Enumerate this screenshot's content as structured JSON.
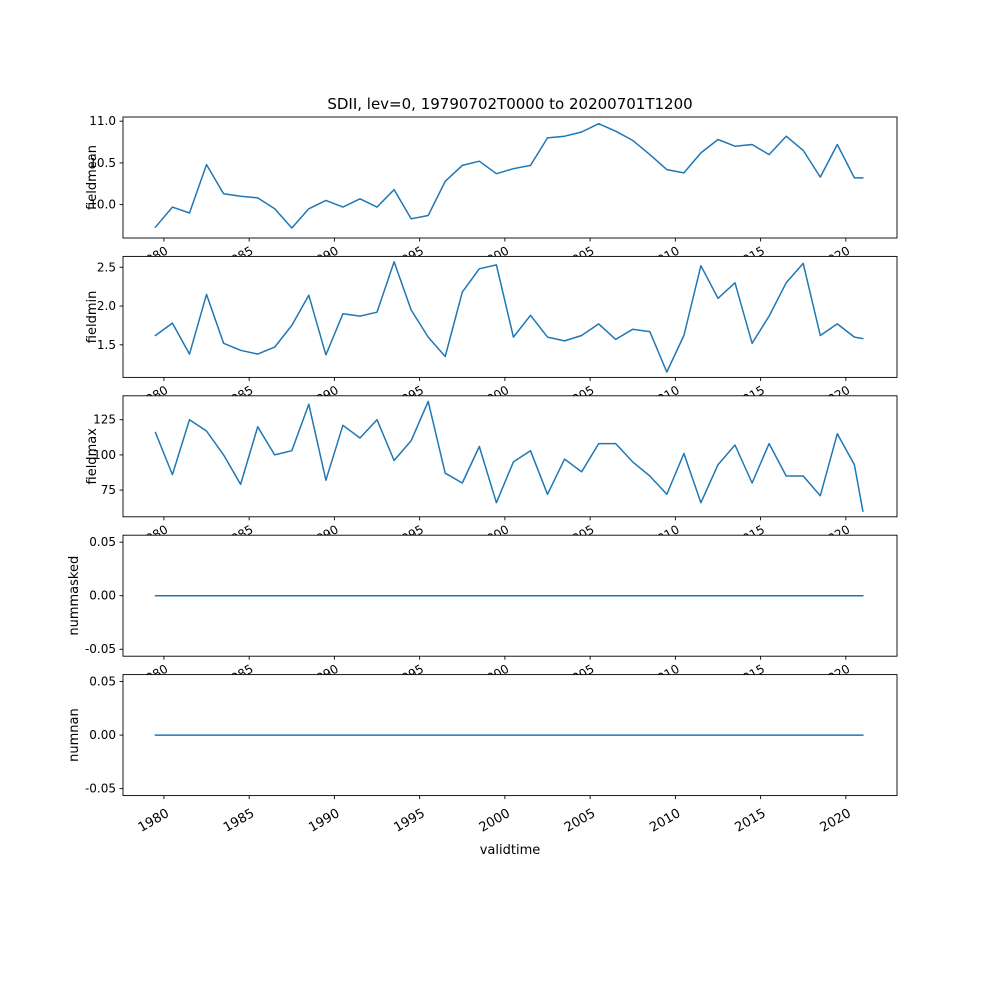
{
  "chart_data": {
    "type": "line",
    "title": "SDII, lev=0, 19790702T0000 to 20200701T1200",
    "xlabel": "validtime",
    "line_color": "#1f77b4",
    "axis_color": "#000000",
    "grid": false,
    "legend": "none",
    "xlim": [
      1977.6,
      2023.0
    ],
    "x_ticks": [
      1980,
      1985,
      1990,
      1995,
      2000,
      2005,
      2010,
      2015,
      2020
    ],
    "x_tick_labels": [
      "1980",
      "1985",
      "1990",
      "1995",
      "2000",
      "2005",
      "2010",
      "2015",
      "2020"
    ],
    "x": [
      1979.5,
      1980.5,
      1981.5,
      1982.5,
      1983.5,
      1984.5,
      1985.5,
      1986.5,
      1987.5,
      1988.5,
      1989.5,
      1990.5,
      1991.5,
      1992.5,
      1993.5,
      1994.5,
      1995.5,
      1996.5,
      1997.5,
      1998.5,
      1999.5,
      2000.5,
      2001.5,
      2002.5,
      2003.5,
      2004.5,
      2005.5,
      2006.5,
      2007.5,
      2008.5,
      2009.5,
      2010.5,
      2011.5,
      2012.5,
      2013.5,
      2014.5,
      2015.5,
      2016.5,
      2017.5,
      2018.5,
      2019.5,
      2020.5,
      2021.0
    ],
    "subplots": [
      {
        "ylabel": "fieldmean",
        "ylim": [
          9.6,
          11.05
        ],
        "yticks": [
          10.0,
          10.5,
          11.0
        ],
        "ytick_labels": [
          "10.0",
          "10.5",
          "11.0"
        ],
        "values": [
          9.73,
          9.97,
          9.9,
          10.48,
          10.13,
          10.1,
          10.08,
          9.95,
          9.72,
          9.95,
          10.05,
          9.97,
          10.07,
          9.97,
          10.18,
          9.83,
          9.87,
          10.28,
          10.47,
          10.52,
          10.37,
          10.43,
          10.47,
          10.8,
          10.82,
          10.87,
          10.97,
          10.88,
          10.77,
          10.6,
          10.42,
          10.38,
          10.62,
          10.78,
          10.7,
          10.72,
          10.6,
          10.82,
          10.65,
          10.33,
          10.72,
          10.32,
          10.32
        ]
      },
      {
        "ylabel": "fieldmin",
        "ylim": [
          1.08,
          2.64
        ],
        "yticks": [
          1.5,
          2.0,
          2.5
        ],
        "ytick_labels": [
          "1.5",
          "2.0",
          "2.5"
        ],
        "values": [
          1.62,
          1.78,
          1.38,
          2.15,
          1.52,
          1.43,
          1.38,
          1.47,
          1.75,
          2.14,
          1.37,
          1.9,
          1.87,
          1.92,
          2.57,
          1.95,
          1.6,
          1.35,
          2.18,
          2.48,
          2.53,
          1.6,
          1.88,
          1.6,
          1.55,
          1.62,
          1.77,
          1.57,
          1.7,
          1.67,
          1.15,
          1.62,
          2.52,
          2.1,
          2.3,
          1.52,
          1.87,
          2.3,
          2.55,
          1.62,
          1.77,
          1.6,
          1.58
        ]
      },
      {
        "ylabel": "fieldmax",
        "ylim": [
          56,
          142
        ],
        "yticks": [
          75,
          100,
          125
        ],
        "ytick_labels": [
          "75",
          "100",
          "125"
        ],
        "values": [
          116,
          86,
          125,
          117,
          100,
          79,
          120,
          100,
          103,
          136,
          82,
          121,
          112,
          125,
          96,
          110,
          138,
          87,
          80,
          106,
          66,
          95,
          103,
          72,
          97,
          88,
          108,
          108,
          95,
          85,
          72,
          101,
          66,
          93,
          107,
          80,
          108,
          85,
          85,
          71,
          115,
          93,
          60
        ]
      },
      {
        "ylabel": "nummasked",
        "ylim": [
          -0.0565,
          0.0565
        ],
        "yticks": [
          -0.05,
          0.0,
          0.05
        ],
        "ytick_labels": [
          "-0.05",
          "0.00",
          "0.05"
        ],
        "values": [
          0,
          0,
          0,
          0,
          0,
          0,
          0,
          0,
          0,
          0,
          0,
          0,
          0,
          0,
          0,
          0,
          0,
          0,
          0,
          0,
          0,
          0,
          0,
          0,
          0,
          0,
          0,
          0,
          0,
          0,
          0,
          0,
          0,
          0,
          0,
          0,
          0,
          0,
          0,
          0,
          0,
          0,
          0
        ]
      },
      {
        "ylabel": "numnan",
        "ylim": [
          -0.0565,
          0.0565
        ],
        "yticks": [
          -0.05,
          0.0,
          0.05
        ],
        "ytick_labels": [
          "-0.05",
          "0.00",
          "0.05"
        ],
        "values": [
          0,
          0,
          0,
          0,
          0,
          0,
          0,
          0,
          0,
          0,
          0,
          0,
          0,
          0,
          0,
          0,
          0,
          0,
          0,
          0,
          0,
          0,
          0,
          0,
          0,
          0,
          0,
          0,
          0,
          0,
          0,
          0,
          0,
          0,
          0,
          0,
          0,
          0,
          0,
          0,
          0,
          0,
          0
        ]
      }
    ]
  }
}
